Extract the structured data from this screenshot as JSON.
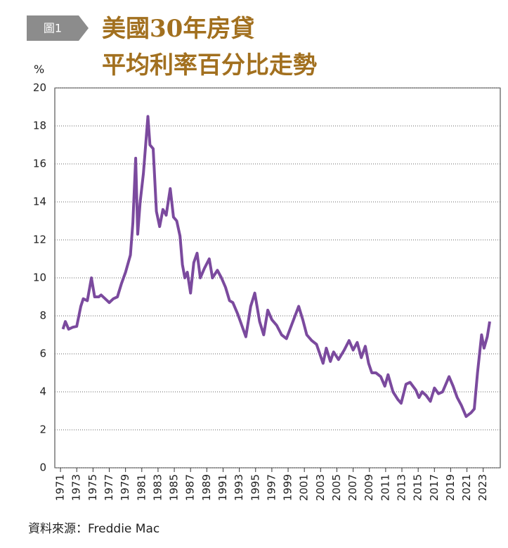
{
  "chart_data": {
    "type": "line",
    "badge": "圖1",
    "title": [
      "美國30年房貸",
      "平均利率百分比走勢"
    ],
    "y_label": "%",
    "source": "資料來源：Freddie Mac",
    "xlim": [
      1970.3,
      2025.1
    ],
    "ylim": [
      0,
      20
    ],
    "xticks": [
      1971,
      1973,
      1975,
      1977,
      1979,
      1981,
      1983,
      1985,
      1987,
      1989,
      1991,
      1993,
      1995,
      1997,
      1999,
      2001,
      2003,
      2005,
      2007,
      2009,
      2011,
      2013,
      2015,
      2017,
      2019,
      2021,
      2023
    ],
    "yticks": [
      0,
      2,
      4,
      6,
      8,
      10,
      12,
      14,
      16,
      18,
      20
    ],
    "grid": true,
    "series": [
      {
        "name": "30年房貸平均利率",
        "color": "#7b4a9e",
        "x": [
          1971.3,
          1971.6,
          1972.0,
          1972.5,
          1973.0,
          1973.5,
          1973.8,
          1974.3,
          1974.8,
          1975.2,
          1975.7,
          1976.0,
          1976.5,
          1977.0,
          1977.5,
          1978.0,
          1978.5,
          1979.0,
          1979.6,
          1979.9,
          1980.25,
          1980.5,
          1980.8,
          1981.2,
          1981.75,
          1982.0,
          1982.4,
          1982.8,
          1983.2,
          1983.6,
          1984.0,
          1984.5,
          1984.9,
          1985.3,
          1985.7,
          1986.0,
          1986.3,
          1986.6,
          1987.0,
          1987.4,
          1987.8,
          1988.2,
          1988.7,
          1989.3,
          1989.7,
          1990.3,
          1990.8,
          1991.3,
          1991.8,
          1992.2,
          1992.8,
          1993.3,
          1993.8,
          1994.4,
          1994.9,
          1995.5,
          1996.0,
          1996.5,
          1997.0,
          1997.6,
          1998.2,
          1998.8,
          1999.5,
          2000.3,
          2000.8,
          2001.3,
          2001.9,
          2002.5,
          2003.3,
          2003.7,
          2004.2,
          2004.6,
          2005.2,
          2005.9,
          2006.5,
          2007.0,
          2007.5,
          2008.0,
          2008.5,
          2008.9,
          2009.3,
          2009.8,
          2010.4,
          2010.9,
          2011.3,
          2011.9,
          2012.5,
          2012.9,
          2013.5,
          2014.0,
          2014.7,
          2015.1,
          2015.5,
          2016.0,
          2016.5,
          2017.0,
          2017.5,
          2018.0,
          2018.8,
          2019.3,
          2019.8,
          2020.3,
          2020.9,
          2021.5,
          2021.9,
          2022.3,
          2022.8,
          2023.1,
          2023.5,
          2023.8
        ],
        "values": [
          7.3,
          7.7,
          7.3,
          7.4,
          7.45,
          8.5,
          8.9,
          8.8,
          10.0,
          9.0,
          9.0,
          9.1,
          8.9,
          8.7,
          8.9,
          9.0,
          9.7,
          10.3,
          11.2,
          12.9,
          16.3,
          12.3,
          14.0,
          15.5,
          18.5,
          17.0,
          16.8,
          13.5,
          12.7,
          13.6,
          13.3,
          14.7,
          13.2,
          13.0,
          12.2,
          10.7,
          10.0,
          10.3,
          9.2,
          10.8,
          11.3,
          10.0,
          10.5,
          11.0,
          10.0,
          10.4,
          10.0,
          9.5,
          8.8,
          8.7,
          8.1,
          7.5,
          6.9,
          8.5,
          9.2,
          7.7,
          7.0,
          8.3,
          7.8,
          7.5,
          7.0,
          6.8,
          7.6,
          8.5,
          7.8,
          7.0,
          6.7,
          6.5,
          5.5,
          6.3,
          5.6,
          6.1,
          5.7,
          6.2,
          6.7,
          6.2,
          6.6,
          5.8,
          6.4,
          5.5,
          5.0,
          5.0,
          4.8,
          4.3,
          4.9,
          4.0,
          3.6,
          3.4,
          4.4,
          4.5,
          4.1,
          3.7,
          4.0,
          3.8,
          3.5,
          4.2,
          3.9,
          4.0,
          4.8,
          4.3,
          3.7,
          3.3,
          2.7,
          2.9,
          3.1,
          5.0,
          7.0,
          6.3,
          6.9,
          7.7
        ]
      }
    ]
  }
}
